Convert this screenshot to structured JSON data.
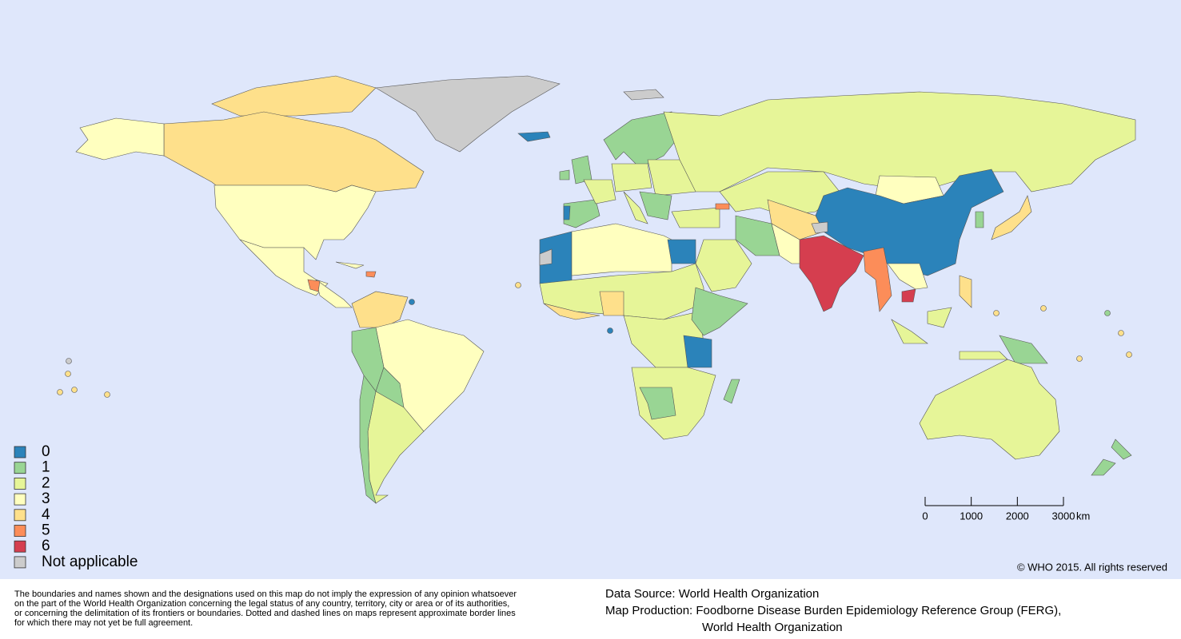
{
  "legend": {
    "items": [
      {
        "label": "0",
        "color": "#2b83ba"
      },
      {
        "label": "1",
        "color": "#99d594"
      },
      {
        "label": "2",
        "color": "#e6f598"
      },
      {
        "label": "3",
        "color": "#ffffbf"
      },
      {
        "label": "4",
        "color": "#fee08b"
      },
      {
        "label": "5",
        "color": "#fc8d59"
      },
      {
        "label": "6",
        "color": "#d53e4f"
      },
      {
        "label": "Not applicable",
        "color": "#cccccc"
      }
    ]
  },
  "scale_bar": {
    "ticks": [
      0,
      1000,
      2000,
      3000
    ],
    "unit": "km"
  },
  "copyright": "© WHO 2015. All rights reserved",
  "disclaimer": [
    "The boundaries and names shown and the designations used on this map do not imply the expression of any opinion whatsoever",
    "on the part of the World Health Organization concerning the legal status of any country, territory, city or area or of its authorities,",
    "or concerning the delimitation of its frontiers or boundaries. Dotted and dashed lines on maps represent approximate border lines",
    "for which there may not yet be full agreement."
  ],
  "data_source": "Data Source: World Health Organization",
  "map_production": [
    "Map Production: Foodborne Disease Burden Epidemiology Reference Group (FERG),",
    "World Health Organization"
  ]
}
